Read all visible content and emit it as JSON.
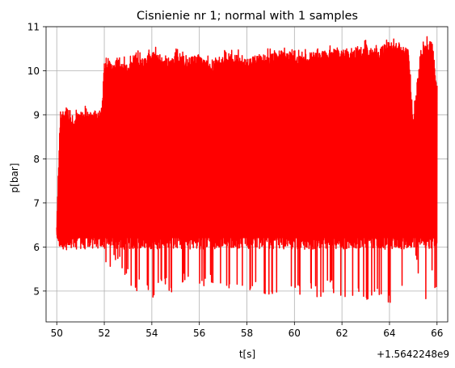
{
  "chart_data": {
    "type": "line",
    "title": "Cisnienie nr 1; normal with 1 samples",
    "xlabel": "t[s]",
    "ylabel": "p[bar]",
    "x_offset_label": "+1.5642248e9",
    "xlim": [
      49.55,
      66.45
    ],
    "ylim": [
      4.3,
      11.0
    ],
    "xticks": [
      50,
      52,
      54,
      56,
      58,
      60,
      62,
      64,
      66
    ],
    "yticks": [
      5,
      6,
      7,
      8,
      9,
      10,
      11
    ],
    "grid": true,
    "series": [
      {
        "color": "#ff0000",
        "x_range": [
          50.0,
          66.0
        ],
        "envelope": {
          "x": [
            50.0,
            50.15,
            50.3,
            50.6,
            51.0,
            51.5,
            51.9,
            52.0,
            52.5,
            53.0,
            53.3,
            53.6,
            54.0,
            54.5,
            55.0,
            55.5,
            56.0,
            56.5,
            57.0,
            57.5,
            58.0,
            58.5,
            59.0,
            59.5,
            60.0,
            60.5,
            61.0,
            61.5,
            62.0,
            62.5,
            63.0,
            63.5,
            64.0,
            64.5,
            64.8,
            65.0,
            65.3,
            65.6,
            65.8,
            66.0
          ],
          "upper": [
            6.6,
            9.2,
            9.2,
            9.1,
            9.2,
            9.2,
            9.3,
            10.3,
            10.4,
            10.3,
            10.5,
            10.4,
            10.6,
            10.4,
            10.5,
            10.4,
            10.5,
            10.3,
            10.5,
            10.5,
            10.4,
            10.5,
            10.5,
            10.6,
            10.5,
            10.5,
            10.6,
            10.6,
            10.6,
            10.6,
            10.7,
            10.6,
            10.8,
            10.7,
            10.7,
            9.0,
            10.6,
            10.8,
            10.8,
            9.8
          ],
          "lower": [
            6.4,
            6.2,
            5.7,
            6.2,
            6.2,
            5.9,
            6.1,
            5.4,
            5.6,
            5.3,
            4.9,
            5.3,
            4.8,
            5.1,
            4.9,
            5.2,
            5.0,
            5.2,
            5.0,
            5.1,
            5.0,
            4.9,
            4.7,
            4.9,
            4.8,
            5.0,
            4.8,
            5.0,
            4.8,
            4.9,
            4.7,
            4.8,
            4.7,
            4.8,
            6.2,
            6.3,
            4.7,
            4.8,
            5.5,
            4.7
          ]
        },
        "baseline": 6.3
      }
    ]
  }
}
